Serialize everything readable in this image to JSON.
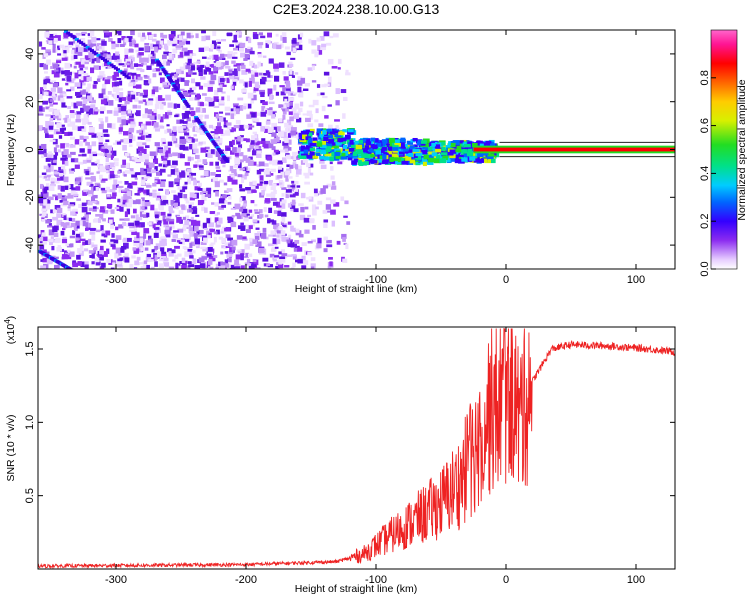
{
  "title": "C2E3.2024.238.10.00.G13",
  "chart_data": [
    {
      "type": "heatmap",
      "xlabel": "Height of straight line (km)",
      "ylabel": "Frequency (Hz)",
      "xlim": [
        -360,
        130
      ],
      "ylim": [
        -50,
        50
      ],
      "x_ticks": [
        -300,
        -200,
        -100,
        0,
        100
      ],
      "y_ticks": [
        -40,
        -20,
        0,
        20,
        40
      ],
      "colorbar": {
        "label": "Normalized spectral amplitude",
        "range": [
          0,
          1
        ],
        "ticks": [
          "0.0",
          "0.2",
          "0.4",
          "0.6",
          "0.8"
        ],
        "colors": [
          "#ffffff",
          "#e6ccff",
          "#8b2cf0",
          "#3300ff",
          "#0066ff",
          "#00ccff",
          "#00e08a",
          "#22dd22",
          "#d7f000",
          "#ffcc00",
          "#ff6600",
          "#ff0000",
          "#ff1493",
          "#ff66cc"
        ]
      },
      "description_of_values": {
        "signal_line_frequency_hz": 0,
        "signal_onset_height_km": -155,
        "noise_region_end_height_km": -125,
        "strong_signal_start_height_km": -25,
        "signal_end_height_km": 130
      }
    },
    {
      "type": "line",
      "xlabel": "Height of straight line (km)",
      "ylabel": "SNR (10 * v/v)",
      "y_multiplier_label": "(x10",
      "y_multiplier_exponent": "4",
      "xlim": [
        -360,
        130
      ],
      "ylim": [
        0,
        1.65
      ],
      "x_ticks": [
        -300,
        -200,
        -100,
        0,
        100
      ],
      "y_ticks": [
        "0.5",
        "1.0",
        "1.5"
      ],
      "series": [
        {
          "color": "#ee2222",
          "key_points": [
            [
              -360,
              0.02
            ],
            [
              -200,
              0.03
            ],
            [
              -130,
              0.05
            ],
            [
              -110,
              0.1
            ],
            [
              -90,
              0.22
            ],
            [
              -70,
              0.33
            ],
            [
              -50,
              0.45
            ],
            [
              -35,
              0.6
            ],
            [
              -25,
              0.8
            ],
            [
              -15,
              1.05
            ],
            [
              -5,
              1.15
            ],
            [
              0,
              1.2
            ],
            [
              5,
              1.25
            ],
            [
              10,
              1.0
            ],
            [
              15,
              1.2
            ],
            [
              25,
              1.35
            ],
            [
              35,
              1.5
            ],
            [
              50,
              1.53
            ],
            [
              80,
              1.52
            ],
            [
              110,
              1.5
            ],
            [
              130,
              1.48
            ]
          ]
        }
      ]
    }
  ]
}
